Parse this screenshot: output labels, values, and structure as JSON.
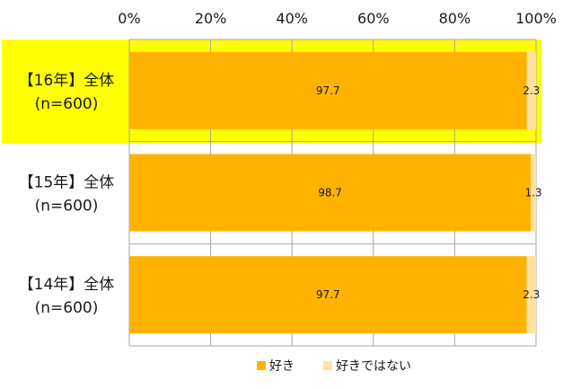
{
  "chart_data": {
    "type": "bar",
    "orientation": "horizontal",
    "stacked": true,
    "percent_stacked": true,
    "categories": [
      {
        "line1": "【16年】全体",
        "line2": "(n=600)",
        "highlighted": true
      },
      {
        "line1": "【15年】全体",
        "line2": "(n=600)",
        "highlighted": false
      },
      {
        "line1": "【14年】全体",
        "line2": "(n=600)",
        "highlighted": false
      }
    ],
    "series": [
      {
        "name": "好き",
        "color": "#FFB200",
        "values": [
          97.7,
          98.7,
          97.7
        ],
        "labels": [
          "97.7",
          "98.7",
          "97.7"
        ]
      },
      {
        "name": "好きではない",
        "color": "#FFE2A0",
        "values": [
          2.3,
          1.3,
          2.3
        ],
        "labels": [
          "2.3",
          "1.3",
          "2.3"
        ]
      }
    ],
    "xlim": [
      0,
      100
    ],
    "xticks": [
      {
        "value": 0,
        "label": "0%"
      },
      {
        "value": 20,
        "label": "20%"
      },
      {
        "value": 40,
        "label": "40%"
      },
      {
        "value": 60,
        "label": "60%"
      },
      {
        "value": 80,
        "label": "80%"
      },
      {
        "value": 100,
        "label": "100%"
      }
    ],
    "tick_position": "top",
    "grid": true,
    "legend": "bottom",
    "highlight_color": "#FFFF00",
    "title": "",
    "xlabel": "",
    "ylabel": ""
  }
}
